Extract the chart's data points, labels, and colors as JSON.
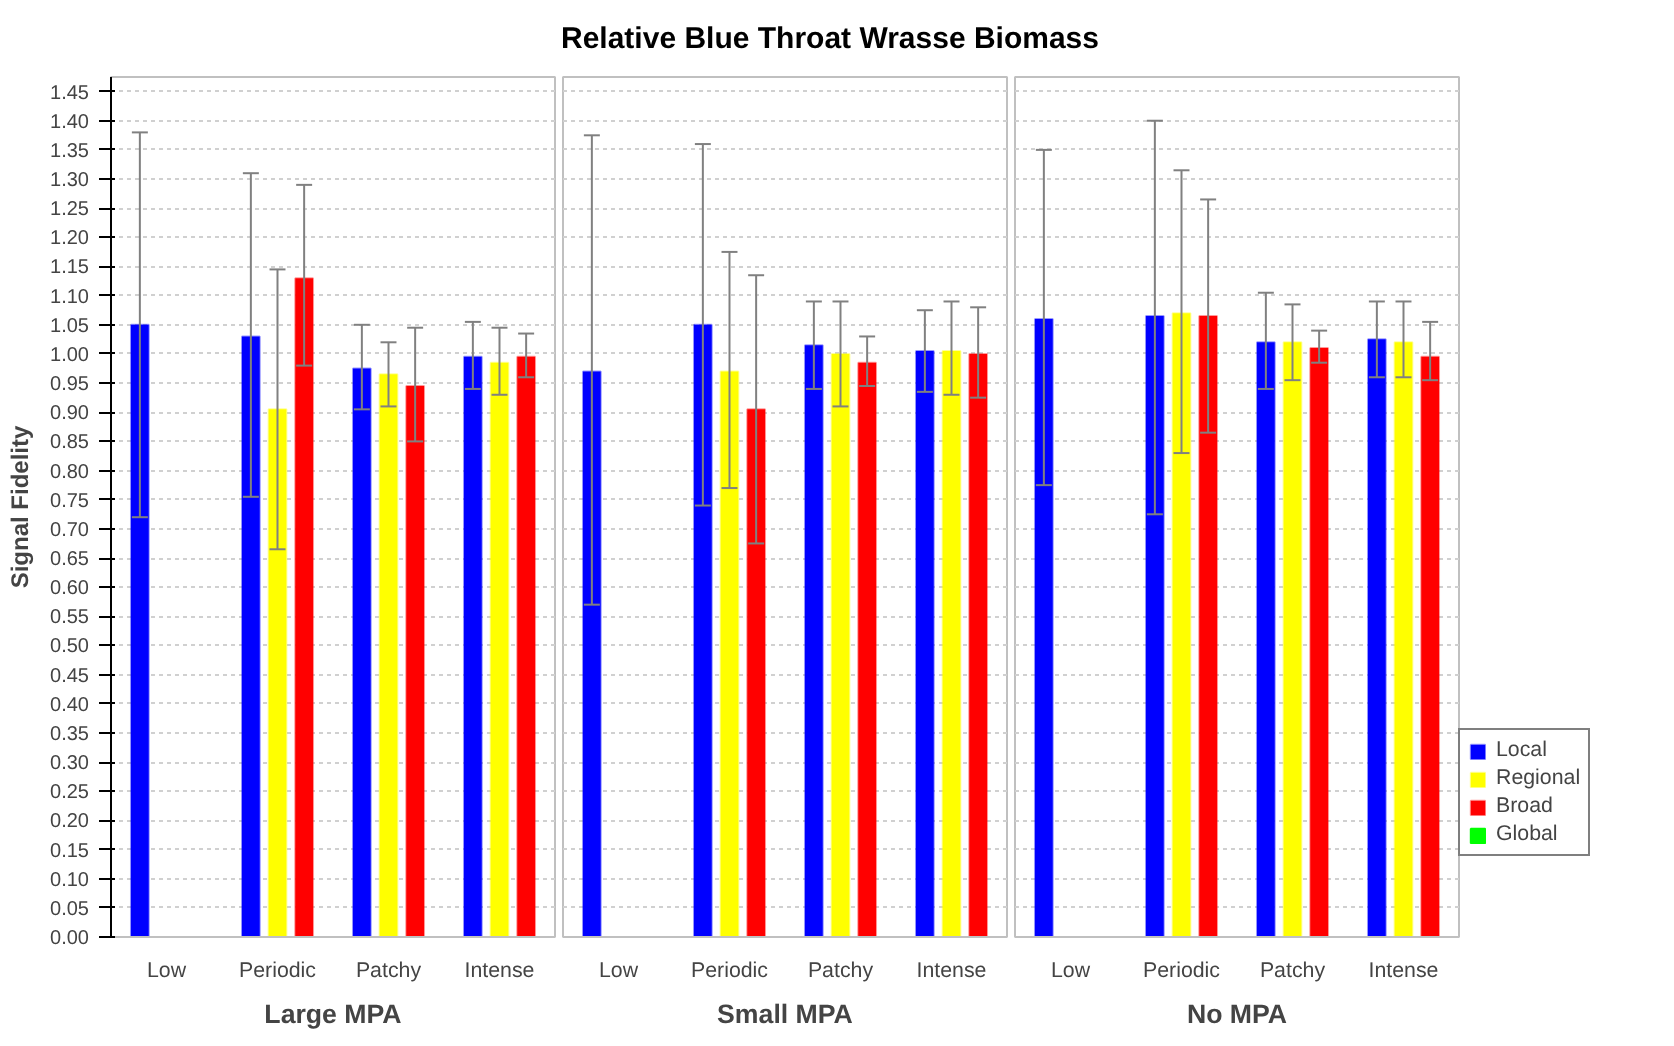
{
  "chart_data": [
    {
      "type": "bar",
      "xlabel": "Large MPA",
      "ylabel": "Signal Fidelity",
      "categories": [
        "Low",
        "Periodic",
        "Patchy",
        "Intense"
      ],
      "ylim": [
        0,
        1.475
      ],
      "yticks": [
        {
          "value": 0,
          "label": "0.00"
        },
        {
          "value": 0.05,
          "label": "0.05"
        },
        {
          "value": 0.1,
          "label": "0.10"
        },
        {
          "value": 0.15,
          "label": "0.15"
        },
        {
          "value": 0.2,
          "label": "0.20"
        },
        {
          "value": 0.25,
          "label": "0.25"
        },
        {
          "value": 0.3,
          "label": "0.30"
        },
        {
          "value": 0.35,
          "label": "0.35"
        },
        {
          "value": 0.4,
          "label": "0.40"
        },
        {
          "value": 0.45,
          "label": "0.45"
        },
        {
          "value": 0.5,
          "label": "0.50"
        },
        {
          "value": 0.55,
          "label": "0.55"
        },
        {
          "value": 0.6,
          "label": "0.60"
        },
        {
          "value": 0.65,
          "label": "0.65"
        },
        {
          "value": 0.7,
          "label": "0.70"
        },
        {
          "value": 0.75,
          "label": "0.75"
        },
        {
          "value": 0.8,
          "label": "0.80"
        },
        {
          "value": 0.85,
          "label": "0.85"
        },
        {
          "value": 0.9,
          "label": "0.90"
        },
        {
          "value": 0.95,
          "label": "0.95"
        },
        {
          "value": 1.0,
          "label": "1.00"
        },
        {
          "value": 1.05,
          "label": "1.05"
        },
        {
          "value": 1.1,
          "label": "1.10"
        },
        {
          "value": 1.15,
          "label": "1.15"
        },
        {
          "value": 1.2,
          "label": "1.20"
        },
        {
          "value": 1.25,
          "label": "1.25"
        },
        {
          "value": 1.3,
          "label": "1.30"
        },
        {
          "value": 1.35,
          "label": "1.35"
        },
        {
          "value": 1.4,
          "label": "1.40"
        },
        {
          "value": 1.45,
          "label": "1.45"
        }
      ],
      "grid": "y",
      "series": [
        {
          "color": "#0000ff",
          "values": [
            1.05,
            1.03,
            0.975,
            0.995
          ],
          "errors": [
            [
              0.72,
              1.38
            ],
            [
              0.755,
              1.31
            ],
            [
              0.905,
              1.05
            ],
            [
              0.94,
              1.055
            ]
          ]
        },
        {
          "color": "#ffff00",
          "values": [
            null,
            0.905,
            0.965,
            0.985
          ],
          "errors": [
            null,
            [
              0.665,
              1.145
            ],
            [
              0.91,
              1.02
            ],
            [
              0.93,
              1.045
            ]
          ]
        },
        {
          "color": "#ff0000",
          "values": [
            null,
            1.13,
            0.945,
            0.995
          ],
          "errors": [
            null,
            [
              0.98,
              1.29
            ],
            [
              0.85,
              1.045
            ],
            [
              0.96,
              1.035
            ]
          ]
        },
        {
          "color": "#00ff00",
          "values": [
            null,
            null,
            null,
            null
          ]
        }
      ]
    },
    {
      "type": "bar",
      "title": "Relative Blue Throat Wrasse Biomass",
      "xlabel": "Small MPA",
      "categories": [
        "Low",
        "Periodic",
        "Patchy",
        "Intense"
      ],
      "ylim": [
        0,
        1.475
      ],
      "yticks": [
        {
          "value": 0,
          "label": null
        },
        {
          "value": 0.05,
          "label": null
        },
        {
          "value": 0.1,
          "label": null
        },
        {
          "value": 0.15,
          "label": null
        },
        {
          "value": 0.2,
          "label": null
        },
        {
          "value": 0.25,
          "label": null
        },
        {
          "value": 0.3,
          "label": null
        },
        {
          "value": 0.35,
          "label": null
        },
        {
          "value": 0.4,
          "label": null
        },
        {
          "value": 0.45,
          "label": null
        },
        {
          "value": 0.5,
          "label": null
        },
        {
          "value": 0.55,
          "label": null
        },
        {
          "value": 0.6,
          "label": null
        },
        {
          "value": 0.65,
          "label": null
        },
        {
          "value": 0.7,
          "label": null
        },
        {
          "value": 0.75,
          "label": null
        },
        {
          "value": 0.8,
          "label": null
        },
        {
          "value": 0.85,
          "label": null
        },
        {
          "value": 0.9,
          "label": null
        },
        {
          "value": 0.95,
          "label": null
        },
        {
          "value": 1.0,
          "label": null
        },
        {
          "value": 1.05,
          "label": null
        },
        {
          "value": 1.1,
          "label": null
        },
        {
          "value": 1.15,
          "label": null
        },
        {
          "value": 1.2,
          "label": null
        },
        {
          "value": 1.25,
          "label": null
        },
        {
          "value": 1.3,
          "label": null
        },
        {
          "value": 1.35,
          "label": null
        },
        {
          "value": 1.4,
          "label": null
        },
        {
          "value": 1.45,
          "label": null
        }
      ],
      "tick_labels": "x",
      "grid": "y",
      "series": [
        {
          "color": "#0000ff",
          "values": [
            0.97,
            1.05,
            1.015,
            1.005
          ],
          "errors": [
            [
              0.57,
              1.375
            ],
            [
              0.74,
              1.36
            ],
            [
              0.94,
              1.09
            ],
            [
              0.935,
              1.075
            ]
          ]
        },
        {
          "color": "#ffff00",
          "values": [
            null,
            0.97,
            1.0,
            1.005
          ],
          "errors": [
            null,
            [
              0.77,
              1.175
            ],
            [
              0.91,
              1.09
            ],
            [
              0.93,
              1.09
            ]
          ]
        },
        {
          "color": "#ff0000",
          "values": [
            null,
            0.905,
            0.985,
            1.0
          ],
          "errors": [
            null,
            [
              0.675,
              1.135
            ],
            [
              0.945,
              1.03
            ],
            [
              0.925,
              1.08
            ]
          ]
        },
        {
          "color": "#00ff00",
          "values": [
            null,
            null,
            null,
            null
          ]
        }
      ]
    },
    {
      "type": "bar",
      "xlabel": "No MPA",
      "categories": [
        "Low",
        "Periodic",
        "Patchy",
        "Intense"
      ],
      "ylim": [
        0,
        1.475
      ],
      "yticks": [
        {
          "value": 0,
          "label": null
        },
        {
          "value": 0.05,
          "label": null
        },
        {
          "value": 0.1,
          "label": null
        },
        {
          "value": 0.15,
          "label": null
        },
        {
          "value": 0.2,
          "label": null
        },
        {
          "value": 0.25,
          "label": null
        },
        {
          "value": 0.3,
          "label": null
        },
        {
          "value": 0.35,
          "label": null
        },
        {
          "value": 0.4,
          "label": null
        },
        {
          "value": 0.45,
          "label": null
        },
        {
          "value": 0.5,
          "label": null
        },
        {
          "value": 0.55,
          "label": null
        },
        {
          "value": 0.6,
          "label": null
        },
        {
          "value": 0.65,
          "label": null
        },
        {
          "value": 0.7,
          "label": null
        },
        {
          "value": 0.75,
          "label": null
        },
        {
          "value": 0.8,
          "label": null
        },
        {
          "value": 0.85,
          "label": null
        },
        {
          "value": 0.9,
          "label": null
        },
        {
          "value": 0.95,
          "label": null
        },
        {
          "value": 1.0,
          "label": null
        },
        {
          "value": 1.05,
          "label": null
        },
        {
          "value": 1.1,
          "label": null
        },
        {
          "value": 1.15,
          "label": null
        },
        {
          "value": 1.2,
          "label": null
        },
        {
          "value": 1.25,
          "label": null
        },
        {
          "value": 1.3,
          "label": null
        },
        {
          "value": 1.35,
          "label": null
        },
        {
          "value": 1.4,
          "label": null
        },
        {
          "value": 1.45,
          "label": null
        }
      ],
      "tick_labels": "x",
      "grid": "y",
      "legend": "right",
      "series": [
        {
          "name": "Local",
          "color": "#0000ff",
          "values": [
            1.06,
            1.065,
            1.02,
            1.025
          ],
          "errors": [
            [
              0.775,
              1.35
            ],
            [
              0.725,
              1.4
            ],
            [
              0.94,
              1.105
            ],
            [
              0.96,
              1.09
            ]
          ]
        },
        {
          "name": "Regional",
          "color": "#ffff00",
          "values": [
            null,
            1.07,
            1.02,
            1.02
          ],
          "errors": [
            null,
            [
              0.83,
              1.315
            ],
            [
              0.955,
              1.085
            ],
            [
              0.96,
              1.09
            ]
          ]
        },
        {
          "name": "Broad",
          "color": "#ff0000",
          "values": [
            null,
            1.065,
            1.01,
            0.995
          ],
          "errors": [
            null,
            [
              0.865,
              1.265
            ],
            [
              0.985,
              1.04
            ],
            [
              0.955,
              1.055
            ]
          ]
        },
        {
          "name": "Global",
          "color": "#00ff00",
          "values": [
            null,
            null,
            null,
            null
          ]
        }
      ]
    }
  ]
}
